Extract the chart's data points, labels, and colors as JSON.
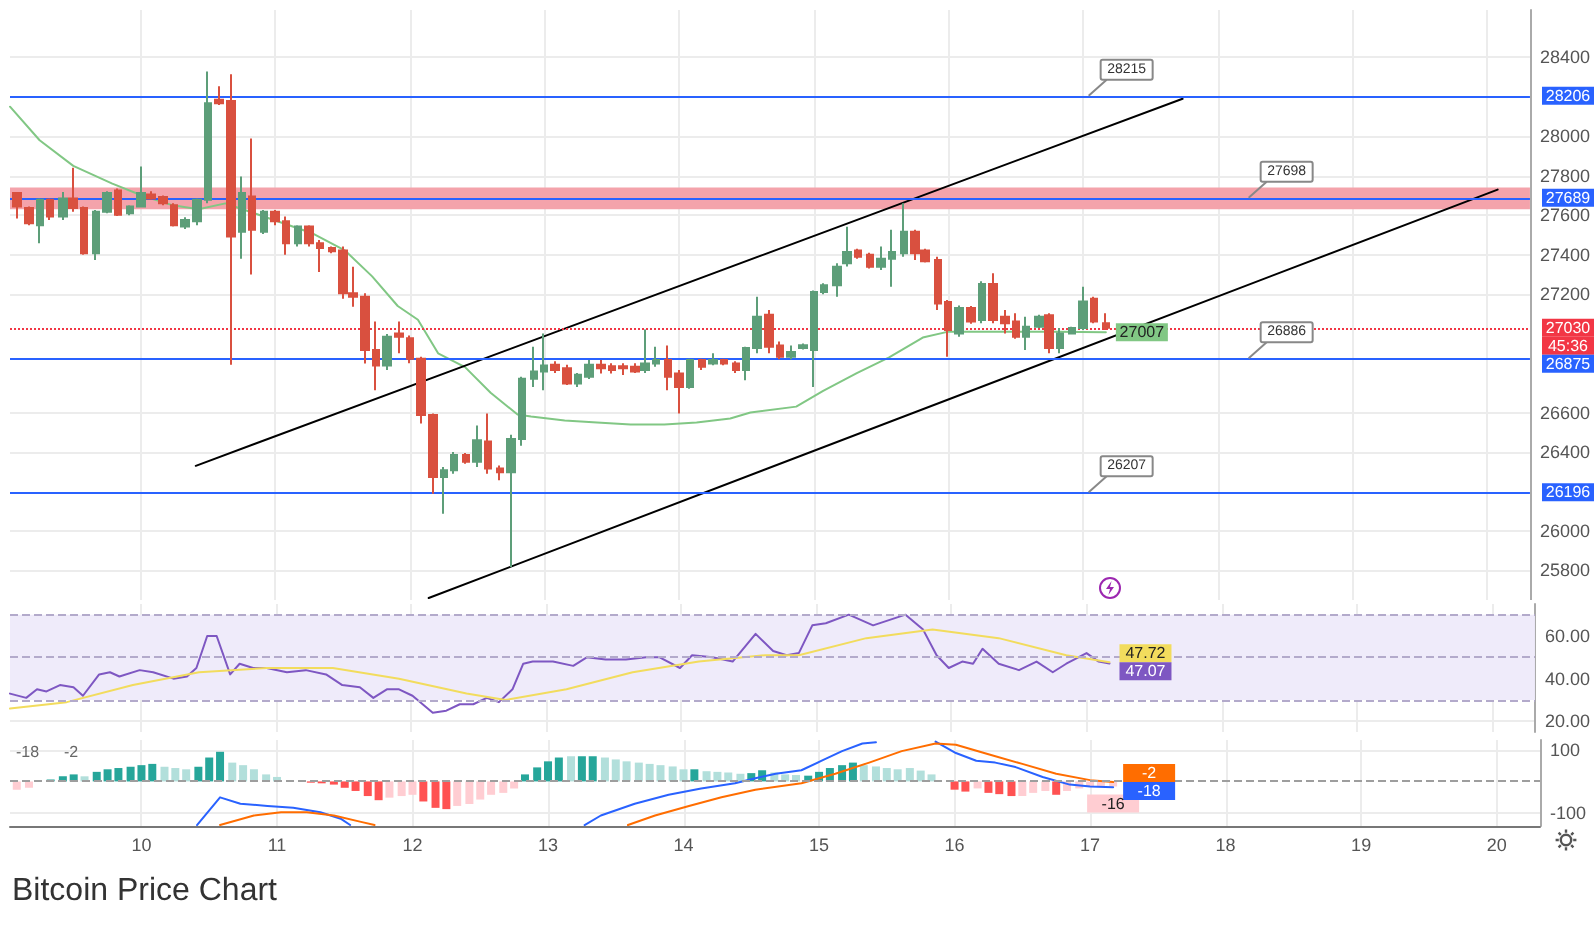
{
  "chart_data": [
    {
      "type": "candlestick",
      "title": "Bitcoin Price Chart",
      "xlim": [
        9.03,
        20.32
      ],
      "xticks": [
        10,
        11,
        12,
        13,
        14,
        15,
        16,
        17,
        18,
        19,
        20
      ],
      "ylim": [
        25650,
        28640
      ],
      "yticks": [
        25800,
        26000,
        26400,
        26600,
        27200,
        27400,
        27600,
        27800,
        28000,
        28400
      ],
      "tick_labels": "y",
      "grid": true,
      "series": [
        {
          "x": [
            9.08,
            9.17,
            9.25,
            9.33,
            9.42,
            9.5,
            9.58,
            9.67,
            9.75,
            9.83,
            9.92,
            10,
            10.08,
            10.17,
            10.25,
            10.33,
            10.42,
            10.5,
            10.58,
            10.67,
            10.75,
            10.83,
            10.92,
            11,
            11.08,
            11.17,
            11.25,
            11.33,
            11.42,
            11.5,
            11.58,
            11.67,
            11.75,
            11.83,
            11.92,
            12,
            12.08,
            12.17,
            12.25,
            12.33,
            12.42,
            12.5,
            12.58,
            12.67,
            12.75,
            12.83,
            12.92,
            13,
            13.08,
            13.17,
            13.25,
            13.33,
            13.42,
            13.5,
            13.58,
            13.67,
            13.75,
            13.83,
            13.92,
            14,
            14.08,
            14.17,
            14.25,
            14.33,
            14.42,
            14.5,
            14.58,
            14.67,
            14.75,
            14.83,
            14.92,
            15,
            15.08,
            15.17,
            15.25,
            15.33,
            15.42,
            15.5,
            15.58,
            15.67,
            15.75,
            15.83,
            15.92,
            16,
            16.08,
            16.17,
            16.25,
            16.33,
            16.42,
            16.5,
            16.58,
            16.67,
            16.75,
            16.83,
            16.92,
            17,
            17.08,
            17.17
          ],
          "ohlc": [
            [
              27712,
              27718,
              27583,
              27644
            ],
            [
              27637,
              27644,
              27549,
              27559
            ],
            [
              27549,
              27685,
              27458,
              27678
            ],
            [
              27678,
              27685,
              27576,
              27593
            ],
            [
              27593,
              27718,
              27576,
              27685
            ],
            [
              27685,
              27840,
              27617,
              27637
            ],
            [
              27637,
              27644,
              27400,
              27407
            ],
            [
              27407,
              27627,
              27373,
              27617
            ],
            [
              27617,
              27722,
              27610,
              27712
            ],
            [
              27725,
              27735,
              27596,
              27603
            ],
            [
              27610,
              27650,
              27600,
              27644
            ],
            [
              27644,
              27847,
              27640,
              27712
            ],
            [
              27705,
              27722,
              27678,
              27685
            ],
            [
              27692,
              27700,
              27650,
              27661
            ],
            [
              27651,
              27661,
              27543,
              27549
            ],
            [
              27543,
              27590,
              27530,
              27576
            ],
            [
              27570,
              27685,
              27549,
              27678
            ],
            [
              27678,
              28328,
              27661,
              28168
            ],
            [
              28185,
              28253,
              28158,
              28168
            ],
            [
              28179,
              28314,
              26842,
              27492
            ],
            [
              27516,
              27796,
              27380,
              27712
            ],
            [
              27695,
              27989,
              27299,
              27526
            ],
            [
              27516,
              27627,
              27505,
              27617
            ],
            [
              27617,
              27627,
              27549,
              27570
            ],
            [
              27570,
              27593,
              27400,
              27458
            ],
            [
              27458,
              27549,
              27441,
              27543
            ],
            [
              27543,
              27549,
              27441,
              27458
            ],
            [
              27458,
              27475,
              27312,
              27434
            ],
            [
              27434,
              27441,
              27407,
              27417
            ],
            [
              27421,
              27441,
              27177,
              27204
            ],
            [
              27204,
              27339,
              27136,
              27187
            ],
            [
              27187,
              27204,
              26849,
              26917
            ],
            [
              26917,
              27062,
              26713,
              26839
            ],
            [
              26839,
              26998,
              26815,
              26984
            ],
            [
              27001,
              27062,
              26900,
              26984
            ],
            [
              26977,
              26990,
              26850,
              26873
            ],
            [
              26873,
              26883,
              26544,
              26588
            ],
            [
              26588,
              26595,
              26189,
              26273
            ],
            [
              26273,
              26324,
              26087,
              26307
            ],
            [
              26307,
              26400,
              26290,
              26385
            ],
            [
              26385,
              26395,
              26340,
              26351
            ],
            [
              26351,
              26534,
              26324,
              26460
            ],
            [
              26453,
              26595,
              26290,
              26317
            ],
            [
              26317,
              26331,
              26257,
              26297
            ],
            [
              26297,
              26487,
              25817,
              26466
            ],
            [
              26466,
              26781,
              26432,
              26771
            ],
            [
              26771,
              26934,
              26730,
              26808
            ],
            [
              26808,
              27001,
              26713,
              26839
            ],
            [
              26842,
              26860,
              26800,
              26815
            ],
            [
              26825,
              26842,
              26740,
              26747
            ],
            [
              26747,
              26800,
              26730,
              26791
            ],
            [
              26781,
              26866,
              26770,
              26842
            ],
            [
              26842,
              26866,
              26798,
              26825
            ],
            [
              26835,
              26850,
              26798,
              26815
            ],
            [
              26835,
              26850,
              26790,
              26825
            ],
            [
              26832,
              26850,
              26800,
              26808
            ],
            [
              26815,
              27021,
              26800,
              26849
            ],
            [
              26849,
              26934,
              26832,
              26866
            ],
            [
              26866,
              26940,
              26713,
              26781
            ],
            [
              26798,
              26815,
              26595,
              26730
            ],
            [
              26730,
              26873,
              26720,
              26866
            ],
            [
              26866,
              26873,
              26815,
              26832
            ],
            [
              26849,
              26900,
              26840,
              26866
            ],
            [
              26866,
              26873,
              26840,
              26849
            ],
            [
              26849,
              26860,
              26800,
              26815
            ],
            [
              26815,
              26934,
              26764,
              26927
            ],
            [
              26927,
              27187,
              26900,
              27086
            ],
            [
              27096,
              27120,
              26900,
              26934
            ],
            [
              26940,
              26960,
              26870,
              26883
            ],
            [
              26883,
              26940,
              26870,
              26907
            ],
            [
              26927,
              26950,
              26920,
              26941
            ],
            [
              26917,
              27218,
              26730,
              27211
            ],
            [
              27211,
              27255,
              27200,
              27245
            ],
            [
              27245,
              27356,
              27187,
              27339
            ],
            [
              27356,
              27542,
              27340,
              27414
            ],
            [
              27421,
              27430,
              27380,
              27390
            ],
            [
              27400,
              27410,
              27330,
              27339
            ],
            [
              27339,
              27441,
              27323,
              27380
            ],
            [
              27380,
              27526,
              27238,
              27414
            ],
            [
              27407,
              27661,
              27390,
              27516
            ],
            [
              27516,
              27526,
              27373,
              27407
            ],
            [
              27421,
              27430,
              27360,
              27367
            ],
            [
              27373,
              27390,
              27120,
              27153
            ],
            [
              27160,
              27170,
              26883,
              27018
            ],
            [
              27001,
              27143,
              26984,
              27130
            ],
            [
              27130,
              27140,
              27050,
              27062
            ],
            [
              27069,
              27265,
              27052,
              27251
            ],
            [
              27251,
              27306,
              27052,
              27069
            ],
            [
              27086,
              27120,
              27001,
              27052
            ],
            [
              27062,
              27103,
              26974,
              26984
            ],
            [
              26984,
              27086,
              26917,
              27035
            ],
            [
              27035,
              27096,
              27028,
              27086
            ],
            [
              27093,
              27103,
              26900,
              26927
            ],
            [
              26927,
              27028,
              26900,
              27001
            ],
            [
              27001,
              27035,
              26995,
              27028
            ],
            [
              27028,
              27238,
              27018,
              27163
            ],
            [
              27177,
              27187,
              27052,
              27062
            ],
            [
              27052,
              27103,
              27018,
              27030
            ]
          ],
          "colors": [
            "#d9503f",
            "#d9503f",
            "#5d9e79",
            "#d9503f",
            "#5d9e79",
            "#d9503f",
            "#d9503f",
            "#5d9e79",
            "#5d9e79",
            "#d9503f",
            "#5d9e79",
            "#5d9e79",
            "#d9503f",
            "#d9503f",
            "#d9503f",
            "#5d9e79",
            "#5d9e79",
            "#5d9e79",
            "#d9503f",
            "#d9503f",
            "#5d9e79",
            "#d9503f",
            "#5d9e79",
            "#d9503f",
            "#d9503f",
            "#5d9e79",
            "#d9503f",
            "#d9503f",
            "#d9503f",
            "#d9503f",
            "#d9503f",
            "#d9503f",
            "#d9503f",
            "#5d9e79",
            "#d9503f",
            "#d9503f",
            "#d9503f",
            "#d9503f",
            "#5d9e79",
            "#5d9e79",
            "#d9503f",
            "#5d9e79",
            "#d9503f",
            "#d9503f",
            "#5d9e79",
            "#5d9e79",
            "#5d9e79",
            "#5d9e79",
            "#d9503f",
            "#d9503f",
            "#5d9e79",
            "#5d9e79",
            "#d9503f",
            "#d9503f",
            "#d9503f",
            "#d9503f",
            "#5d9e79",
            "#5d9e79",
            "#d9503f",
            "#d9503f",
            "#5d9e79",
            "#d9503f",
            "#5d9e79",
            "#d9503f",
            "#d9503f",
            "#5d9e79",
            "#5d9e79",
            "#d9503f",
            "#d9503f",
            "#5d9e79",
            "#5d9e79",
            "#5d9e79",
            "#5d9e79",
            "#5d9e79",
            "#5d9e79",
            "#d9503f",
            "#d9503f",
            "#5d9e79",
            "#5d9e79",
            "#5d9e79",
            "#d9503f",
            "#d9503f",
            "#d9503f",
            "#d9503f",
            "#5d9e79",
            "#d9503f",
            "#5d9e79",
            "#d9503f",
            "#d9503f",
            "#d9503f",
            "#5d9e79",
            "#5d9e79",
            "#d9503f",
            "#5d9e79",
            "#5d9e79",
            "#5d9e79",
            "#d9503f",
            "#d9503f"
          ]
        },
        {
          "type": "line",
          "color": "#81c784",
          "x": [
            9.03,
            9.25,
            9.5,
            9.79,
            10.01,
            10.24,
            10.43,
            10.63,
            10.93,
            11.27,
            11.52,
            11.72,
            11.91,
            12.06,
            12.21,
            12.41,
            12.6,
            12.8,
            12.9,
            13.15,
            13.39,
            13.64,
            13.89,
            14.13,
            14.38,
            14.53,
            14.87,
            15.07,
            15.32,
            15.56,
            15.81,
            16,
            16.3,
            16.8,
            17.17
          ],
          "values": [
            28150,
            27980,
            27850,
            27760,
            27700,
            27650,
            27630,
            27660,
            27590,
            27510,
            27420,
            27290,
            27140,
            27070,
            26900,
            26830,
            26700,
            26590,
            26580,
            26560,
            26550,
            26540,
            26540,
            26550,
            26570,
            26600,
            26630,
            26710,
            26800,
            26880,
            26980,
            27010,
            27010,
            27010,
            27007
          ],
          "value_labels": [
            null,
            null,
            null,
            null,
            null,
            null,
            null,
            null,
            null,
            null,
            null,
            null,
            null,
            null,
            null,
            null,
            null,
            null,
            null,
            null,
            null,
            null,
            null,
            null,
            null,
            null,
            null,
            null,
            null,
            null,
            null,
            null,
            null,
            null,
            "27007"
          ]
        },
        {
          "type": "line",
          "color": "#000000",
          "x": [
            10.41,
            17.74
          ],
          "values": [
            26330,
            28190
          ]
        },
        {
          "type": "line",
          "color": "#000000",
          "x": [
            12.14,
            20.08
          ],
          "values": [
            25660,
            27730
          ]
        }
      ],
      "bands": [
        {
          "axis": "y",
          "from": 27630,
          "to": 27740,
          "color": "#f4a3ab"
        }
      ],
      "ref_lines": [
        {
          "axis": "y",
          "value": 28206,
          "label": "28206",
          "color": "#2962ff"
        },
        {
          "axis": "y",
          "value": 27689,
          "label": "27689",
          "color": "#2962ff"
        },
        {
          "axis": "y",
          "value": 26875,
          "label": "26875",
          "color": "#2962ff"
        },
        {
          "axis": "y",
          "value": 26196,
          "label": "26196",
          "color": "#2962ff"
        },
        {
          "axis": "y",
          "value": 27030,
          "label": "27030",
          "color": "#f23645",
          "line_style": "dotted"
        }
      ],
      "annotations": [
        "28215",
        "27698",
        "26886",
        "26207",
        "45:36"
      ]
    },
    {
      "type": "line",
      "xlim": [
        9.03,
        20.32
      ],
      "xticks": [
        10,
        11,
        12,
        13,
        14,
        15,
        16,
        17,
        18,
        19,
        20
      ],
      "ylim": [
        15,
        75
      ],
      "yticks": [
        {
          "value": 20,
          "label": "20.00"
        },
        {
          "value": 40,
          "label": "40.00"
        },
        {
          "value": 60,
          "label": "60.00"
        }
      ],
      "tick_labels": "y",
      "grid": true,
      "series": [
        {
          "color": "#7e57c2",
          "x": [
            9.03,
            9.15,
            9.23,
            9.3,
            9.4,
            9.5,
            9.57,
            9.69,
            9.77,
            9.84,
            9.99,
            10.09,
            10.24,
            10.34,
            10.41,
            10.49,
            10.56,
            10.66,
            10.73,
            10.83,
            10.93,
            11.08,
            11.22,
            11.37,
            11.49,
            11.62,
            11.72,
            11.82,
            11.91,
            12.01,
            12.16,
            12.26,
            12.36,
            12.46,
            12.56,
            12.65,
            12.75,
            12.83,
            12.9,
            13.05,
            13.2,
            13.3,
            13.44,
            13.59,
            13.74,
            13.84,
            13.99,
            14.08,
            14.23,
            14.38,
            14.55,
            14.68,
            14.78,
            14.87,
            14.97,
            15.07,
            15.24,
            15.42,
            15.66,
            15.79,
            15.89,
            15.98,
            16.08,
            16.16,
            16.23,
            16.35,
            16.5,
            16.63,
            16.75,
            16.85,
            17,
            17.09,
            17.17
          ],
          "values": [
            33,
            31,
            35,
            34,
            37,
            36,
            32,
            42,
            43,
            41,
            44,
            43,
            40,
            41,
            45,
            60,
            60,
            42,
            47,
            45,
            45,
            43,
            44,
            42,
            37,
            36,
            31,
            35,
            35,
            32,
            24,
            25,
            28,
            28,
            31,
            29,
            35,
            47,
            48,
            48,
            46,
            50,
            49,
            49,
            50,
            50,
            45,
            51,
            50,
            48,
            61,
            53,
            51,
            52,
            65,
            66,
            70,
            65,
            70,
            63,
            51,
            45,
            48,
            47,
            54,
            47,
            44,
            48,
            43,
            47,
            52,
            48,
            47.07
          ],
          "value_labels": [
            null,
            null,
            null,
            null,
            null,
            null,
            null,
            null,
            null,
            null,
            null,
            null,
            null,
            null,
            null,
            null,
            null,
            null,
            null,
            null,
            null,
            null,
            null,
            null,
            null,
            null,
            null,
            null,
            null,
            null,
            null,
            null,
            null,
            null,
            null,
            null,
            null,
            null,
            null,
            null,
            null,
            null,
            null,
            null,
            null,
            null,
            null,
            null,
            null,
            null,
            null,
            null,
            null,
            null,
            null,
            null,
            null,
            null,
            null,
            null,
            null,
            null,
            null,
            null,
            null,
            null,
            null,
            null,
            null,
            null,
            null,
            null,
            "47.07"
          ]
        },
        {
          "color": "#f2dc5d",
          "x": [
            9.03,
            9.45,
            9.94,
            10.43,
            10.93,
            11.42,
            11.91,
            12.41,
            12.7,
            13.15,
            13.64,
            14.13,
            14.62,
            14.87,
            15.37,
            15.86,
            16.35,
            16.85,
            17.17
          ],
          "values": [
            26,
            29,
            37,
            43,
            45,
            45,
            40,
            33,
            30,
            35,
            43,
            48,
            51,
            51,
            59,
            63,
            59,
            51,
            47.72
          ],
          "value_labels": [
            null,
            null,
            null,
            null,
            null,
            null,
            null,
            null,
            null,
            null,
            null,
            null,
            null,
            null,
            null,
            null,
            null,
            null,
            "47.72"
          ]
        }
      ],
      "bands": [
        {
          "axis": "y",
          "from": 30,
          "to": 70,
          "color": "#efebfa"
        }
      ],
      "ref_lines": [
        {
          "axis": "y",
          "value": 70,
          "color": "#b3aacb",
          "line_style": "dashed"
        },
        {
          "axis": "y",
          "value": 50,
          "color": "#b3aacb",
          "line_style": "dashed"
        },
        {
          "axis": "y",
          "value": 30,
          "color": "#b3aacb",
          "line_style": "dashed"
        }
      ]
    },
    {
      "type": "bar",
      "xlim": [
        9.03,
        20.32
      ],
      "xticks": [
        10,
        11,
        12,
        13,
        14,
        15,
        16,
        17,
        18,
        19,
        20
      ],
      "ylim": [
        -140,
        130
      ],
      "yticks": [
        -100,
        100
      ],
      "grid": true,
      "series": [
        {
          "x": [
            9.08,
            9.17,
            9.25,
            9.33,
            9.42,
            9.5,
            9.58,
            9.67,
            9.75,
            9.83,
            9.92,
            10,
            10.08,
            10.17,
            10.25,
            10.33,
            10.42,
            10.5,
            10.58,
            10.67,
            10.75,
            10.83,
            10.92,
            11,
            11.08,
            11.17,
            11.25,
            11.33,
            11.42,
            11.5,
            11.58,
            11.67,
            11.75,
            11.83,
            11.92,
            12,
            12.08,
            12.17,
            12.25,
            12.33,
            12.42,
            12.5,
            12.58,
            12.67,
            12.75,
            12.83,
            12.92,
            13,
            13.08,
            13.17,
            13.25,
            13.33,
            13.42,
            13.5,
            13.58,
            13.67,
            13.75,
            13.83,
            13.92,
            14,
            14.08,
            14.17,
            14.25,
            14.33,
            14.42,
            14.5,
            14.58,
            14.67,
            14.75,
            14.83,
            14.92,
            15,
            15.08,
            15.17,
            15.25,
            15.33,
            15.42,
            15.5,
            15.58,
            15.67,
            15.75,
            15.83,
            15.92,
            16,
            16.08,
            16.17,
            16.25,
            16.33,
            16.42,
            16.5,
            16.58,
            16.67,
            16.75,
            16.83,
            16.92,
            17,
            17.08,
            17.17
          ],
          "values": [
            -26,
            -20,
            null,
            6,
            16,
            22,
            16,
            30,
            38,
            42,
            46,
            51,
            55,
            46,
            42,
            38,
            46,
            75,
            93,
            59,
            51,
            38,
            22,
            14,
            null,
            null,
            -4,
            -6,
            -10,
            -20,
            -30,
            -46,
            -59,
            -51,
            -46,
            -42,
            -63,
            -83,
            -87,
            -77,
            -71,
            -57,
            -42,
            -36,
            -22,
            22,
            44,
            63,
            75,
            79,
            79,
            79,
            75,
            69,
            63,
            59,
            55,
            51,
            47,
            38,
            38,
            32,
            30,
            28,
            24,
            26,
            35,
            28,
            22,
            20,
            18,
            30,
            42,
            51,
            59,
            51,
            47,
            42,
            38,
            42,
            34,
            22,
            null,
            -26,
            -32,
            -22,
            -36,
            -40,
            -46,
            -46,
            -36,
            -30,
            -42,
            -30,
            -22,
            -16,
            -14,
            -16
          ],
          "colors": [
            "#ffcdd2",
            "#ffcdd2",
            "#ffcdd2",
            "#26a69a",
            "#26a69a",
            "#26a69a",
            "#b2dfdb",
            "#26a69a",
            "#26a69a",
            "#26a69a",
            "#26a69a",
            "#26a69a",
            "#26a69a",
            "#b2dfdb",
            "#b2dfdb",
            "#b2dfdb",
            "#26a69a",
            "#26a69a",
            "#26a69a",
            "#b2dfdb",
            "#b2dfdb",
            "#b2dfdb",
            "#b2dfdb",
            "#b2dfdb",
            "#b2dfdb",
            "#b2dfdb",
            "#ff5252",
            "#ff5252",
            "#ff5252",
            "#ff5252",
            "#ff5252",
            "#ff5252",
            "#ff5252",
            "#ffcdd2",
            "#ffcdd2",
            "#ffcdd2",
            "#ff5252",
            "#ff5252",
            "#ff5252",
            "#ffcdd2",
            "#ffcdd2",
            "#ffcdd2",
            "#ffcdd2",
            "#ffcdd2",
            "#ffcdd2",
            "#26a69a",
            "#26a69a",
            "#26a69a",
            "#26a69a",
            "#b2dfdb",
            "#26a69a",
            "#26a69a",
            "#b2dfdb",
            "#b2dfdb",
            "#b2dfdb",
            "#b2dfdb",
            "#b2dfdb",
            "#b2dfdb",
            "#b2dfdb",
            "#b2dfdb",
            "#26a69a",
            "#b2dfdb",
            "#b2dfdb",
            "#b2dfdb",
            "#b2dfdb",
            "#26a69a",
            "#26a69a",
            "#b2dfdb",
            "#b2dfdb",
            "#b2dfdb",
            "#26a69a",
            "#26a69a",
            "#26a69a",
            "#26a69a",
            "#26a69a",
            "#b2dfdb",
            "#b2dfdb",
            "#b2dfdb",
            "#b2dfdb",
            "#b2dfdb",
            "#b2dfdb",
            "#b2dfdb",
            "#b2dfdb",
            "#ff5252",
            "#ff5252",
            "#ffcdd2",
            "#ff5252",
            "#ff5252",
            "#ff5252",
            "#ffcdd2",
            "#ffcdd2",
            "#ffcdd2",
            "#ff5252",
            "#ffcdd2",
            "#ffcdd2",
            "#ffcdd2",
            "#ffcdd2",
            "#ffcdd2"
          ],
          "value_labels": [
            null,
            null,
            null,
            null,
            null,
            null,
            null,
            null,
            null,
            null,
            null,
            null,
            null,
            null,
            null,
            null,
            null,
            null,
            null,
            null,
            null,
            null,
            null,
            null,
            null,
            null,
            null,
            null,
            null,
            null,
            null,
            null,
            null,
            null,
            null,
            null,
            null,
            null,
            null,
            null,
            null,
            null,
            null,
            null,
            null,
            null,
            null,
            null,
            null,
            null,
            null,
            null,
            null,
            null,
            null,
            null,
            null,
            null,
            null,
            null,
            null,
            null,
            null,
            null,
            null,
            null,
            null,
            null,
            null,
            null,
            null,
            null,
            null,
            null,
            null,
            null,
            null,
            null,
            null,
            null,
            null,
            null,
            null,
            null,
            null,
            null,
            null,
            null,
            null,
            null,
            null,
            null,
            null,
            null,
            null,
            null,
            null,
            "-16"
          ]
        },
        {
          "type": "line",
          "color": "#2962ff",
          "x": [
            10.41,
            10.58,
            10.73,
            10.93,
            11.12,
            11.32,
            11.47,
            11.54,
            11.6,
            13.2,
            13.27,
            13.39,
            13.64,
            13.89,
            14.13,
            14.38,
            14.53,
            14.68,
            14.87,
            15.02,
            15.17,
            15.32,
            15.42,
            15.6,
            15.86,
            16.01,
            16.16,
            16.3,
            16.45,
            16.65,
            16.85,
            17,
            17.17
          ],
          "values": [
            -137,
            -50,
            -70,
            -77,
            -83,
            -97,
            -117,
            -137,
            null,
            null,
            -137,
            -107,
            -70,
            -42,
            -22,
            -6,
            10,
            24,
            35,
            65,
            95,
            119,
            123,
            null,
            125,
            89,
            65,
            59,
            45,
            14,
            -10,
            -16,
            -18
          ],
          "value_labels": [
            null,
            null,
            null,
            null,
            null,
            null,
            null,
            null,
            null,
            null,
            null,
            null,
            null,
            null,
            null,
            null,
            null,
            null,
            null,
            null,
            null,
            null,
            null,
            null,
            null,
            null,
            null,
            null,
            null,
            null,
            null,
            null,
            "-18"
          ]
        },
        {
          "type": "line",
          "color": "#ff6d00",
          "x": [
            10.58,
            10.83,
            11.03,
            11.22,
            11.42,
            11.62,
            11.72,
            11.8,
            13.5,
            13.59,
            13.79,
            14.04,
            14.28,
            14.53,
            14.87,
            15.12,
            15.37,
            15.61,
            15.86,
            16.01,
            16.25,
            16.5,
            16.75,
            17,
            17.17
          ],
          "values": [
            -137,
            -107,
            -97,
            -97,
            -107,
            -127,
            -137,
            null,
            null,
            -137,
            -107,
            -77,
            -50,
            -26,
            -6,
            24,
            59,
            95,
            119,
            115,
            85,
            55,
            24,
            4,
            -2
          ],
          "value_labels": [
            null,
            null,
            null,
            null,
            null,
            null,
            null,
            null,
            null,
            null,
            null,
            null,
            null,
            null,
            null,
            null,
            null,
            null,
            null,
            null,
            null,
            null,
            null,
            null,
            "-2"
          ]
        }
      ],
      "ref_lines": [
        {
          "axis": "y",
          "value": 0,
          "color": "#9e9e9e",
          "line_style": "dashed"
        }
      ],
      "annotations": [
        "-18",
        "-2"
      ]
    }
  ]
}
